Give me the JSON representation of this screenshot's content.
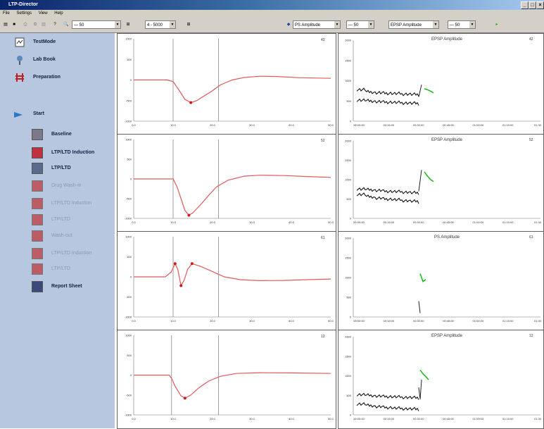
{
  "window": {
    "title": "LTP-Director",
    "controls": [
      "_",
      "□",
      "×"
    ]
  },
  "menu": [
    "File",
    "Settings",
    "View",
    "Help"
  ],
  "toolbar": {
    "combo1": "— 50",
    "combo2": "4 - 5000",
    "param_combo": "PS Amplitude",
    "combo3": "— 50",
    "param_combo2": "EPSP Amplitude",
    "combo4": "— 50"
  },
  "sidebar": {
    "top": [
      "TestMode",
      "Lab Book",
      "Preparation"
    ],
    "start": "Start",
    "items": [
      "Baseline",
      "LTP/LTD Induction",
      "LTP/LTD",
      "Drug Wash-in",
      "LTP/LTD Induction",
      "LTP/LTD",
      "Wash-out",
      "LTP/LTD Induction",
      "LTP/LTD",
      "Report Sheet"
    ],
    "enabled": [
      true,
      true,
      true,
      false,
      false,
      false,
      false,
      false,
      false,
      true
    ]
  },
  "traces": {
    "x_ticks": [
      "0.0",
      "10.0",
      "20.0",
      "30.0",
      "40.0",
      "50.0"
    ],
    "panels": [
      {
        "num": "42",
        "y_ticks": [
          "1000",
          "500",
          "0",
          "-500",
          "-1000"
        ]
      },
      {
        "num": "52",
        "y_ticks": [
          "1000",
          "500",
          "0",
          "-500",
          "-1000"
        ]
      },
      {
        "num": "61",
        "y_ticks": [
          "1000",
          "500",
          "0",
          "-500",
          "-1000"
        ]
      },
      {
        "num": "12",
        "y_ticks": [
          "1000",
          "500",
          "0",
          "-500",
          "-1000"
        ]
      }
    ]
  },
  "trends": {
    "x_ticks": [
      "00:00:00",
      "00:15:00",
      "00:30:00",
      "00:45:00",
      "01:00:00",
      "01:15:00",
      "01:30"
    ],
    "panels": [
      {
        "title": "EPSP Amplitude",
        "num": "42",
        "y_ticks": [
          "2000",
          "1500",
          "1000",
          "500",
          "0"
        ]
      },
      {
        "title": "EPSP Amplitude",
        "num": "52",
        "y_ticks": [
          "2000",
          "1500",
          "1000",
          "500",
          "0"
        ]
      },
      {
        "title": "PS Amplitude",
        "num": "61",
        "y_ticks": [
          "2000",
          "1500",
          "1000",
          "500",
          "0"
        ]
      },
      {
        "title": "EPSP Amplitude",
        "num": "12",
        "y_ticks": [
          "2000",
          "1500",
          "1000",
          "500",
          "0"
        ]
      }
    ]
  },
  "colors": {
    "trace": "#e05a5a",
    "marker": "#d01818",
    "green": "#22bb22",
    "sidebar": "#b7c7e0"
  }
}
